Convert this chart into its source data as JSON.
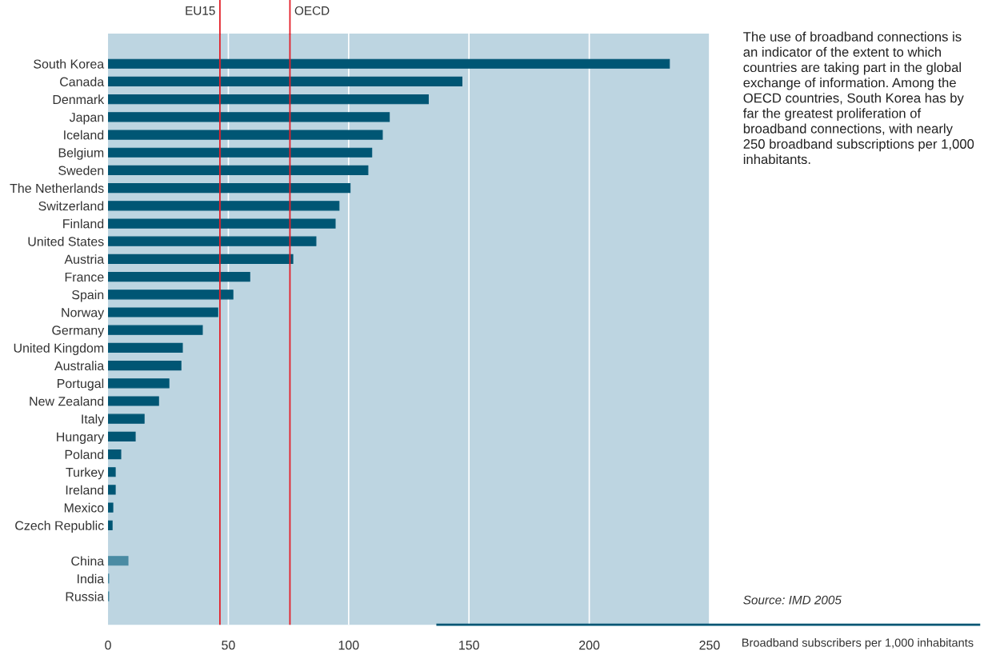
{
  "chart_data": {
    "type": "bar",
    "orientation": "horizontal",
    "xlabel": "Broadband subscribers per 1,000 inhabitants",
    "categories": [
      "South Korea",
      "Canada",
      "Denmark",
      "Japan",
      "Iceland",
      "Belgium",
      "Sweden",
      "The Netherlands",
      "Switzerland",
      "Finland",
      "United States",
      "Austria",
      "France",
      "Spain",
      "Norway",
      "Germany",
      "United Kingdom",
      "Australia",
      "Portugal",
      "New Zealand",
      "Italy",
      "Hungary",
      "Poland",
      "Turkey",
      "Ireland",
      "Mexico",
      "Czech Republic",
      null,
      "China",
      "India",
      "Russia"
    ],
    "values": [
      233.3,
      147.1,
      133.1,
      116.9,
      114.0,
      109.6,
      108.0,
      100.6,
      96.0,
      94.4,
      86.4,
      76.8,
      58.9,
      51.9,
      45.6,
      39.2,
      30.9,
      30.3,
      25.3,
      21.0,
      15.0,
      11.3,
      5.3,
      3.0,
      3.0,
      2.0,
      1.7,
      null,
      8.3,
      0.3,
      0.3
    ],
    "colors": [
      "#005674",
      "#005674",
      "#005674",
      "#005674",
      "#005674",
      "#005674",
      "#005674",
      "#005674",
      "#005674",
      "#005674",
      "#005674",
      "#005674",
      "#005674",
      "#005674",
      "#005674",
      "#005674",
      "#005674",
      "#005674",
      "#005674",
      "#005674",
      "#005674",
      "#005674",
      "#005674",
      "#005674",
      "#005674",
      "#005674",
      "#005674",
      "#005674",
      "#4a8ba3",
      "#4a8ba3",
      "#4a8ba3"
    ],
    "xlim": [
      0,
      250
    ],
    "xticks": [
      0,
      50,
      100,
      150,
      200,
      250
    ],
    "grid": "x",
    "ref_lines": [
      {
        "axis": "x",
        "value": 46.5,
        "label": "EU15",
        "color": "#e3202a"
      },
      {
        "axis": "x",
        "value": 75.6,
        "label": "OECD",
        "color": "#e3202a"
      }
    ],
    "annotations": [
      "The use of broadband connections is\nan indicator of the extent to which\ncountries are taking part in the global\nexchange of information. Among the\nOECD countries, South Korea has by\nfar the greatest proliferation of\nbroadband connections, with nearly\n250 broadband subscriptions per 1,000\ninhabitants.",
      "Source: IMD 2005"
    ]
  }
}
